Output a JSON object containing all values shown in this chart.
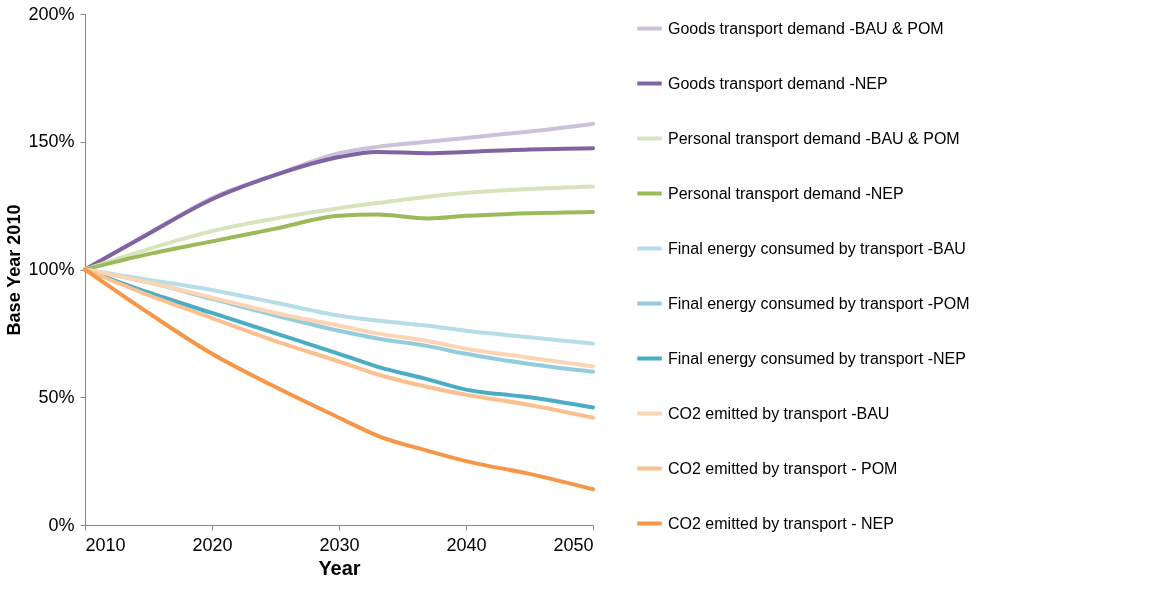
{
  "chart_data": {
    "type": "line",
    "xlabel": "Year",
    "ylabel": "Base Year 2010",
    "x": [
      2010,
      2015,
      2020,
      2025,
      2030,
      2033,
      2037,
      2040,
      2045,
      2050
    ],
    "xlim": [
      2010,
      2050
    ],
    "xticks": [
      2010,
      2020,
      2030,
      2040,
      2050
    ],
    "ylim": [
      0,
      200
    ],
    "yticks": [
      {
        "value": 0,
        "label": "0%"
      },
      {
        "value": 50,
        "label": "50%"
      },
      {
        "value": 100,
        "label": "100%"
      },
      {
        "value": 150,
        "label": "150%"
      },
      {
        "value": 200,
        "label": "200%"
      }
    ],
    "grid": false,
    "legend": "right",
    "marker": "none",
    "line_style": "solid",
    "series": [
      {
        "name": "Goods transport demand -BAU & POM",
        "color": "#ccc1da",
        "values": [
          100,
          114,
          128,
          137,
          145.5,
          148,
          150,
          151.5,
          154,
          157
        ]
      },
      {
        "name": "Goods transport demand -NEP",
        "color": "#8064a2",
        "values": [
          100,
          114,
          127.5,
          137,
          144,
          146,
          145.5,
          146,
          147,
          147.5
        ]
      },
      {
        "name": "Personal transport demand -BAU & POM",
        "color": "#d7e4bd",
        "values": [
          100,
          108,
          115,
          120,
          124,
          126,
          128.5,
          130,
          131.5,
          132.5
        ]
      },
      {
        "name": "Personal transport demand -NEP",
        "color": "#9bbb59",
        "values": [
          100,
          106,
          111,
          116,
          121,
          121.5,
          120,
          121,
          122,
          122.5
        ]
      },
      {
        "name": "Final energy consumed by transport -BAU",
        "color": "#b7dee8",
        "values": [
          100,
          96,
          92,
          87,
          82,
          80,
          78,
          76,
          73.5,
          71
        ]
      },
      {
        "name": "Final energy consumed by transport -POM",
        "color": "#93cddd",
        "values": [
          100,
          95,
          88.5,
          82,
          76,
          73,
          70,
          67,
          63,
          60
        ]
      },
      {
        "name": "Final energy consumed by transport -NEP",
        "color": "#4bacc6",
        "values": [
          100,
          91,
          83,
          75,
          67,
          62,
          57,
          53,
          50,
          46
        ]
      },
      {
        "name": "CO2 emitted by transport -BAU",
        "color": "#fcd5b5",
        "values": [
          100,
          95,
          89,
          83,
          78,
          75,
          72,
          69,
          65.5,
          62
        ]
      },
      {
        "name": "CO2 emitted by transport - POM",
        "color": "#fac090",
        "values": [
          100,
          90,
          81,
          72,
          64,
          59,
          54,
          51,
          47,
          42
        ]
      },
      {
        "name": "CO2 emitted by transport - NEP",
        "color": "#f79646",
        "values": [
          100,
          83,
          67,
          54,
          42,
          35,
          29,
          25,
          20,
          14
        ]
      }
    ]
  }
}
